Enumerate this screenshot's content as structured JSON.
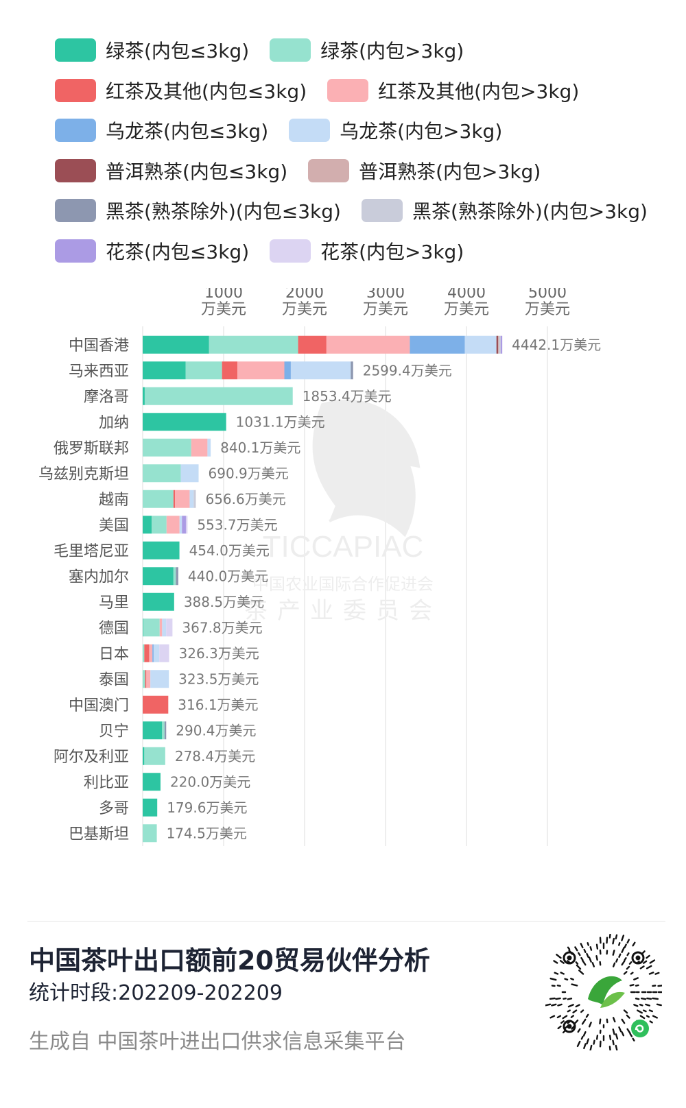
{
  "legend": [
    {
      "label": "绿茶(内包≤3kg)",
      "color": "#2dc5a2"
    },
    {
      "label": "绿茶(内包>3kg)",
      "color": "#96e2cf"
    },
    {
      "label": "红茶及其他(内包≤3kg)",
      "color": "#f06464"
    },
    {
      "label": "红茶及其他(内包>3kg)",
      "color": "#fbb0b4"
    },
    {
      "label": "乌龙茶(内包≤3kg)",
      "color": "#7db0e8"
    },
    {
      "label": "乌龙茶(内包>3kg)",
      "color": "#c4dcf6"
    },
    {
      "label": "普洱熟茶(内包≤3kg)",
      "color": "#9b4e55"
    },
    {
      "label": "普洱熟茶(内包>3kg)",
      "color": "#d2aeae"
    },
    {
      "label": "黑茶(熟茶除外)(内包≤3kg)",
      "color": "#8d97b0"
    },
    {
      "label": "黑茶(熟茶除外)(内包>3kg)",
      "color": "#c9ccda"
    },
    {
      "label": "花茶(内包≤3kg)",
      "color": "#ab9be4"
    },
    {
      "label": "花茶(内包>3kg)",
      "color": "#dcd4f2"
    }
  ],
  "chart_data": {
    "type": "bar",
    "orientation": "horizontal",
    "stacked": true,
    "categories": [
      "中国香港",
      "马来西亚",
      "摩洛哥",
      "加纳",
      "俄罗斯联邦",
      "乌兹别克斯坦",
      "越南",
      "美国",
      "毛里塔尼亚",
      "塞内加尔",
      "马里",
      "德国",
      "日本",
      "泰国",
      "中国澳门",
      "贝宁",
      "阿尔及利亚",
      "利比亚",
      "多哥",
      "巴基斯坦"
    ],
    "x_ticks": [
      {
        "value": 1000,
        "line1": "1000",
        "line2": "万美元"
      },
      {
        "value": 2000,
        "line1": "2000",
        "line2": "万美元"
      },
      {
        "value": 3000,
        "line1": "3000",
        "line2": "万美元"
      },
      {
        "value": 4000,
        "line1": "4000",
        "line2": "万美元"
      },
      {
        "value": 5000,
        "line1": "5000",
        "line2": "万美元"
      }
    ],
    "xlim": [
      0,
      5600
    ],
    "value_unit": "万美元",
    "totals": [
      4442.1,
      2599.4,
      1853.4,
      1031.1,
      840.1,
      690.9,
      656.6,
      553.7,
      454.0,
      440.0,
      388.5,
      367.8,
      326.3,
      323.5,
      316.1,
      290.4,
      278.4,
      220.0,
      179.6,
      174.5
    ],
    "total_labels": [
      "4442.1万美元",
      "2599.4万美元",
      "1853.4万美元",
      "1031.1万美元",
      "840.1万美元",
      "690.9万美元",
      "656.6万美元",
      "553.7万美元",
      "454.0万美元",
      "440.0万美元",
      "388.5万美元",
      "367.8万美元",
      "326.3万美元",
      "323.5万美元",
      "316.1万美元",
      "290.4万美元",
      "278.4万美元",
      "220.0万美元",
      "179.6万美元",
      "174.5万美元"
    ],
    "series": [
      {
        "name": "绿茶(内包≤3kg)",
        "values": [
          820,
          530,
          25,
          1031.1,
          0,
          0,
          0,
          110,
          454.0,
          380,
          388.5,
          5,
          0,
          0,
          0,
          240,
          20,
          220.0,
          179.6,
          0
        ]
      },
      {
        "name": "绿茶(内包>3kg)",
        "values": [
          1100,
          450,
          1828.4,
          0,
          600,
          470,
          380,
          185,
          0,
          30,
          0,
          205,
          20,
          30,
          0,
          30,
          258.4,
          0,
          0,
          174.5
        ]
      },
      {
        "name": "红茶及其他(内包≤3kg)",
        "values": [
          350,
          190,
          0,
          0,
          0,
          0,
          20,
          0,
          0,
          0,
          0,
          0,
          60,
          15,
          316.1,
          0,
          0,
          0,
          0,
          0
        ]
      },
      {
        "name": "红茶及其他(内包>3kg)",
        "values": [
          1030,
          580,
          0,
          0,
          200,
          0,
          180,
          160,
          0,
          0,
          0,
          30,
          40,
          50,
          0,
          0,
          0,
          0,
          0,
          0
        ]
      },
      {
        "name": "乌龙茶(内包≤3kg)",
        "values": [
          680,
          80,
          0,
          0,
          0,
          0,
          0,
          0,
          0,
          0,
          0,
          0,
          15,
          0,
          0,
          0,
          0,
          0,
          0,
          0
        ]
      },
      {
        "name": "乌龙茶(内包>3kg)",
        "values": [
          390,
          740,
          0,
          0,
          40.1,
          220.9,
          50,
          30,
          0,
          0,
          0,
          50,
          70,
          228.5,
          0,
          0,
          0,
          0,
          0,
          0
        ]
      },
      {
        "name": "普洱熟茶(内包≤3kg)",
        "values": [
          20,
          0,
          0,
          0,
          0,
          0,
          0,
          0,
          0,
          0,
          0,
          0,
          0,
          0,
          0,
          0,
          0,
          0,
          0,
          0
        ]
      },
      {
        "name": "普洱熟茶(内包>3kg)",
        "values": [
          12.1,
          0,
          0,
          0,
          0,
          0,
          0,
          0,
          0,
          0,
          0,
          0,
          0,
          0,
          0,
          0,
          0,
          0,
          0,
          0
        ]
      },
      {
        "name": "黑茶(熟茶除外)(内包≤3kg)",
        "values": [
          0,
          29.4,
          0,
          0,
          0,
          0,
          0,
          0,
          0,
          30,
          0,
          0,
          0,
          0,
          0,
          20.4,
          0,
          0,
          0,
          0
        ]
      },
      {
        "name": "黑茶(熟茶除外)(内包>3kg)",
        "values": [
          20,
          0,
          0,
          0,
          0,
          0,
          26.6,
          0,
          0,
          0,
          0,
          0,
          0,
          0,
          0,
          0,
          0,
          0,
          0,
          0
        ]
      },
      {
        "name": "花茶(内包≤3kg)",
        "values": [
          20,
          0,
          0,
          0,
          0,
          0,
          0,
          48.7,
          0,
          0,
          0,
          0,
          0,
          0,
          0,
          0,
          0,
          0,
          0,
          0
        ]
      },
      {
        "name": "花茶(内包>3kg)",
        "values": [
          0,
          0,
          0,
          0,
          0,
          0,
          0,
          20,
          0,
          0,
          0,
          77.8,
          121.3,
          0,
          0,
          0,
          0,
          0,
          0,
          0
        ]
      }
    ]
  },
  "watermark": {
    "line1": "TICCAPIAC",
    "line2": "中国农业国际合作促进会",
    "line3": "茶产业委员会"
  },
  "footer": {
    "title": "中国茶叶出口额前20贸易伙伴分析",
    "period": "统计时段:202209-202209",
    "source": "生成自 中国茶叶进出口供求信息采集平台"
  }
}
